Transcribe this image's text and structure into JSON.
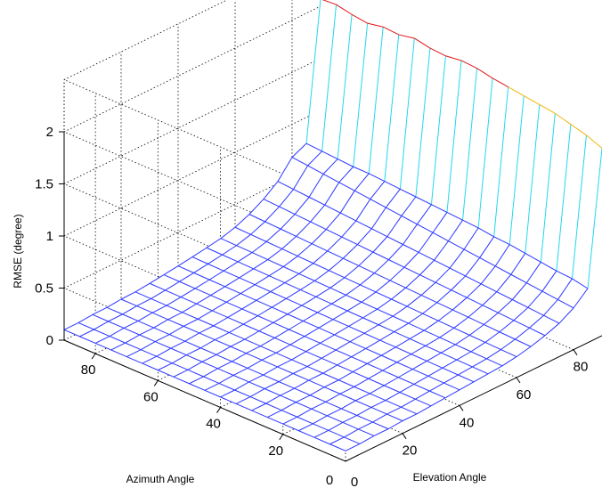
{
  "chart_data": {
    "type": "surface",
    "title": "",
    "xlabel": "Elevation Angle",
    "ylabel": "Azimuth Angle",
    "zlabel": "RMSE (degree)",
    "x_ticks": [
      "20",
      "40",
      "60",
      "80"
    ],
    "y_ticks": [
      "20",
      "40",
      "60",
      "80"
    ],
    "z_ticks": [
      "0",
      "0.5",
      "1",
      "1.5",
      "2"
    ],
    "x_zero_label": "0",
    "y_zero_label": "0",
    "x_range": [
      0,
      90
    ],
    "y_range": [
      0,
      90
    ],
    "zlim": [
      0,
      2
    ],
    "grid": true,
    "colormap": "cool-to-warm (blue at low RMSE, cyan, yellow, red at high RMSE)",
    "x": [
      0,
      5,
      10,
      15,
      20,
      25,
      30,
      35,
      40,
      45,
      50,
      55,
      60,
      65,
      70,
      75,
      80,
      85,
      90
    ],
    "y": [
      0,
      5,
      10,
      15,
      20,
      25,
      30,
      35,
      40,
      45,
      50,
      55,
      60,
      65,
      70,
      75,
      80,
      85,
      90
    ],
    "rmse_at_elevation_90_by_azimuth": [
      1.8,
      1.86,
      1.9,
      1.94,
      1.96,
      1.98,
      2.0,
      2.02,
      2.05,
      2.06,
      2.04,
      2.05,
      2.08,
      2.05,
      2.06,
      2.03,
      2.05,
      2.08,
      2.07
    ],
    "rmse_at_elevation_85_by_azimuth": [
      0.52,
      0.55,
      0.56,
      0.58,
      0.6,
      0.62,
      0.63,
      0.65,
      0.66,
      0.67,
      0.68,
      0.69,
      0.7,
      0.71,
      0.72,
      0.72,
      0.73,
      0.74,
      0.75
    ],
    "rmse_at_azimuth_0_by_elevation": [
      0.1,
      0.1,
      0.11,
      0.11,
      0.12,
      0.12,
      0.13,
      0.14,
      0.15,
      0.16,
      0.17,
      0.18,
      0.2,
      0.23,
      0.27,
      0.32,
      0.4,
      0.52,
      1.8
    ]
  },
  "colors": {
    "low": "#2b36ff",
    "mid": "#22d8f0",
    "high_mid": "#f4b40a",
    "high": "#e01616",
    "box_grid": "#000000"
  }
}
